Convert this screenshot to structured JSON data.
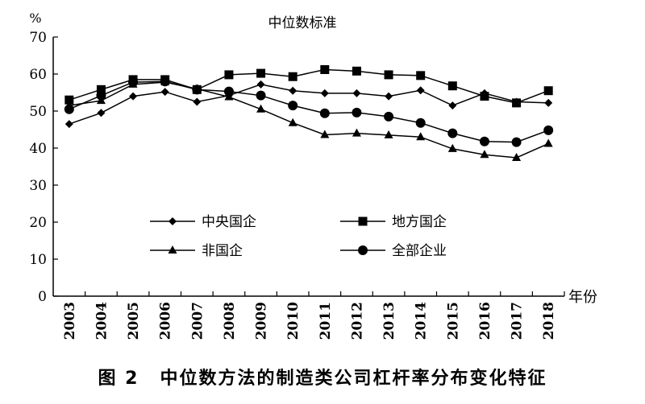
{
  "caption": {
    "figure_label": "图 2",
    "text": "中位数方法的制造类公司杠杆率分布变化特征"
  },
  "chart_data": {
    "type": "line",
    "title": "中位数标准",
    "ylabel": "%",
    "xlabel": "年份",
    "ylim": [
      0,
      70
    ],
    "yticks": [
      0,
      10,
      20,
      30,
      40,
      50,
      60,
      70
    ],
    "grid": false,
    "legend_position": "bottom-inside",
    "x": [
      "2003",
      "2004",
      "2005",
      "2006",
      "2007",
      "2008",
      "2009",
      "2010",
      "2011",
      "2012",
      "2013",
      "2014",
      "2015",
      "2016",
      "2017",
      "2018"
    ],
    "series": [
      {
        "name": "中央国企",
        "marker": "diamond",
        "values": [
          46.5,
          49.5,
          54,
          55.2,
          52.5,
          54.2,
          57.2,
          55.5,
          54.8,
          54.8,
          54,
          55.6,
          51.5,
          54.8,
          52.5,
          52.2
        ]
      },
      {
        "name": "地方国企",
        "marker": "square",
        "values": [
          53,
          55.8,
          58.5,
          58.5,
          55.8,
          59.8,
          60.2,
          59.3,
          61.2,
          60.8,
          59.8,
          59.6,
          56.8,
          54,
          52.2,
          55.5
        ]
      },
      {
        "name": "非国企",
        "marker": "triangle",
        "values": [
          51.5,
          52.8,
          57.2,
          57.8,
          56,
          53.8,
          50.5,
          46.8,
          43.6,
          44,
          43.5,
          43,
          39.8,
          38.2,
          37.4,
          41.2
        ]
      },
      {
        "name": "全部企业",
        "marker": "circle",
        "values": [
          50.5,
          54.2,
          57.8,
          58,
          55.8,
          55.3,
          54.2,
          51.5,
          49.4,
          49.6,
          48.5,
          46.8,
          44,
          41.8,
          41.6,
          44.8
        ]
      }
    ]
  }
}
